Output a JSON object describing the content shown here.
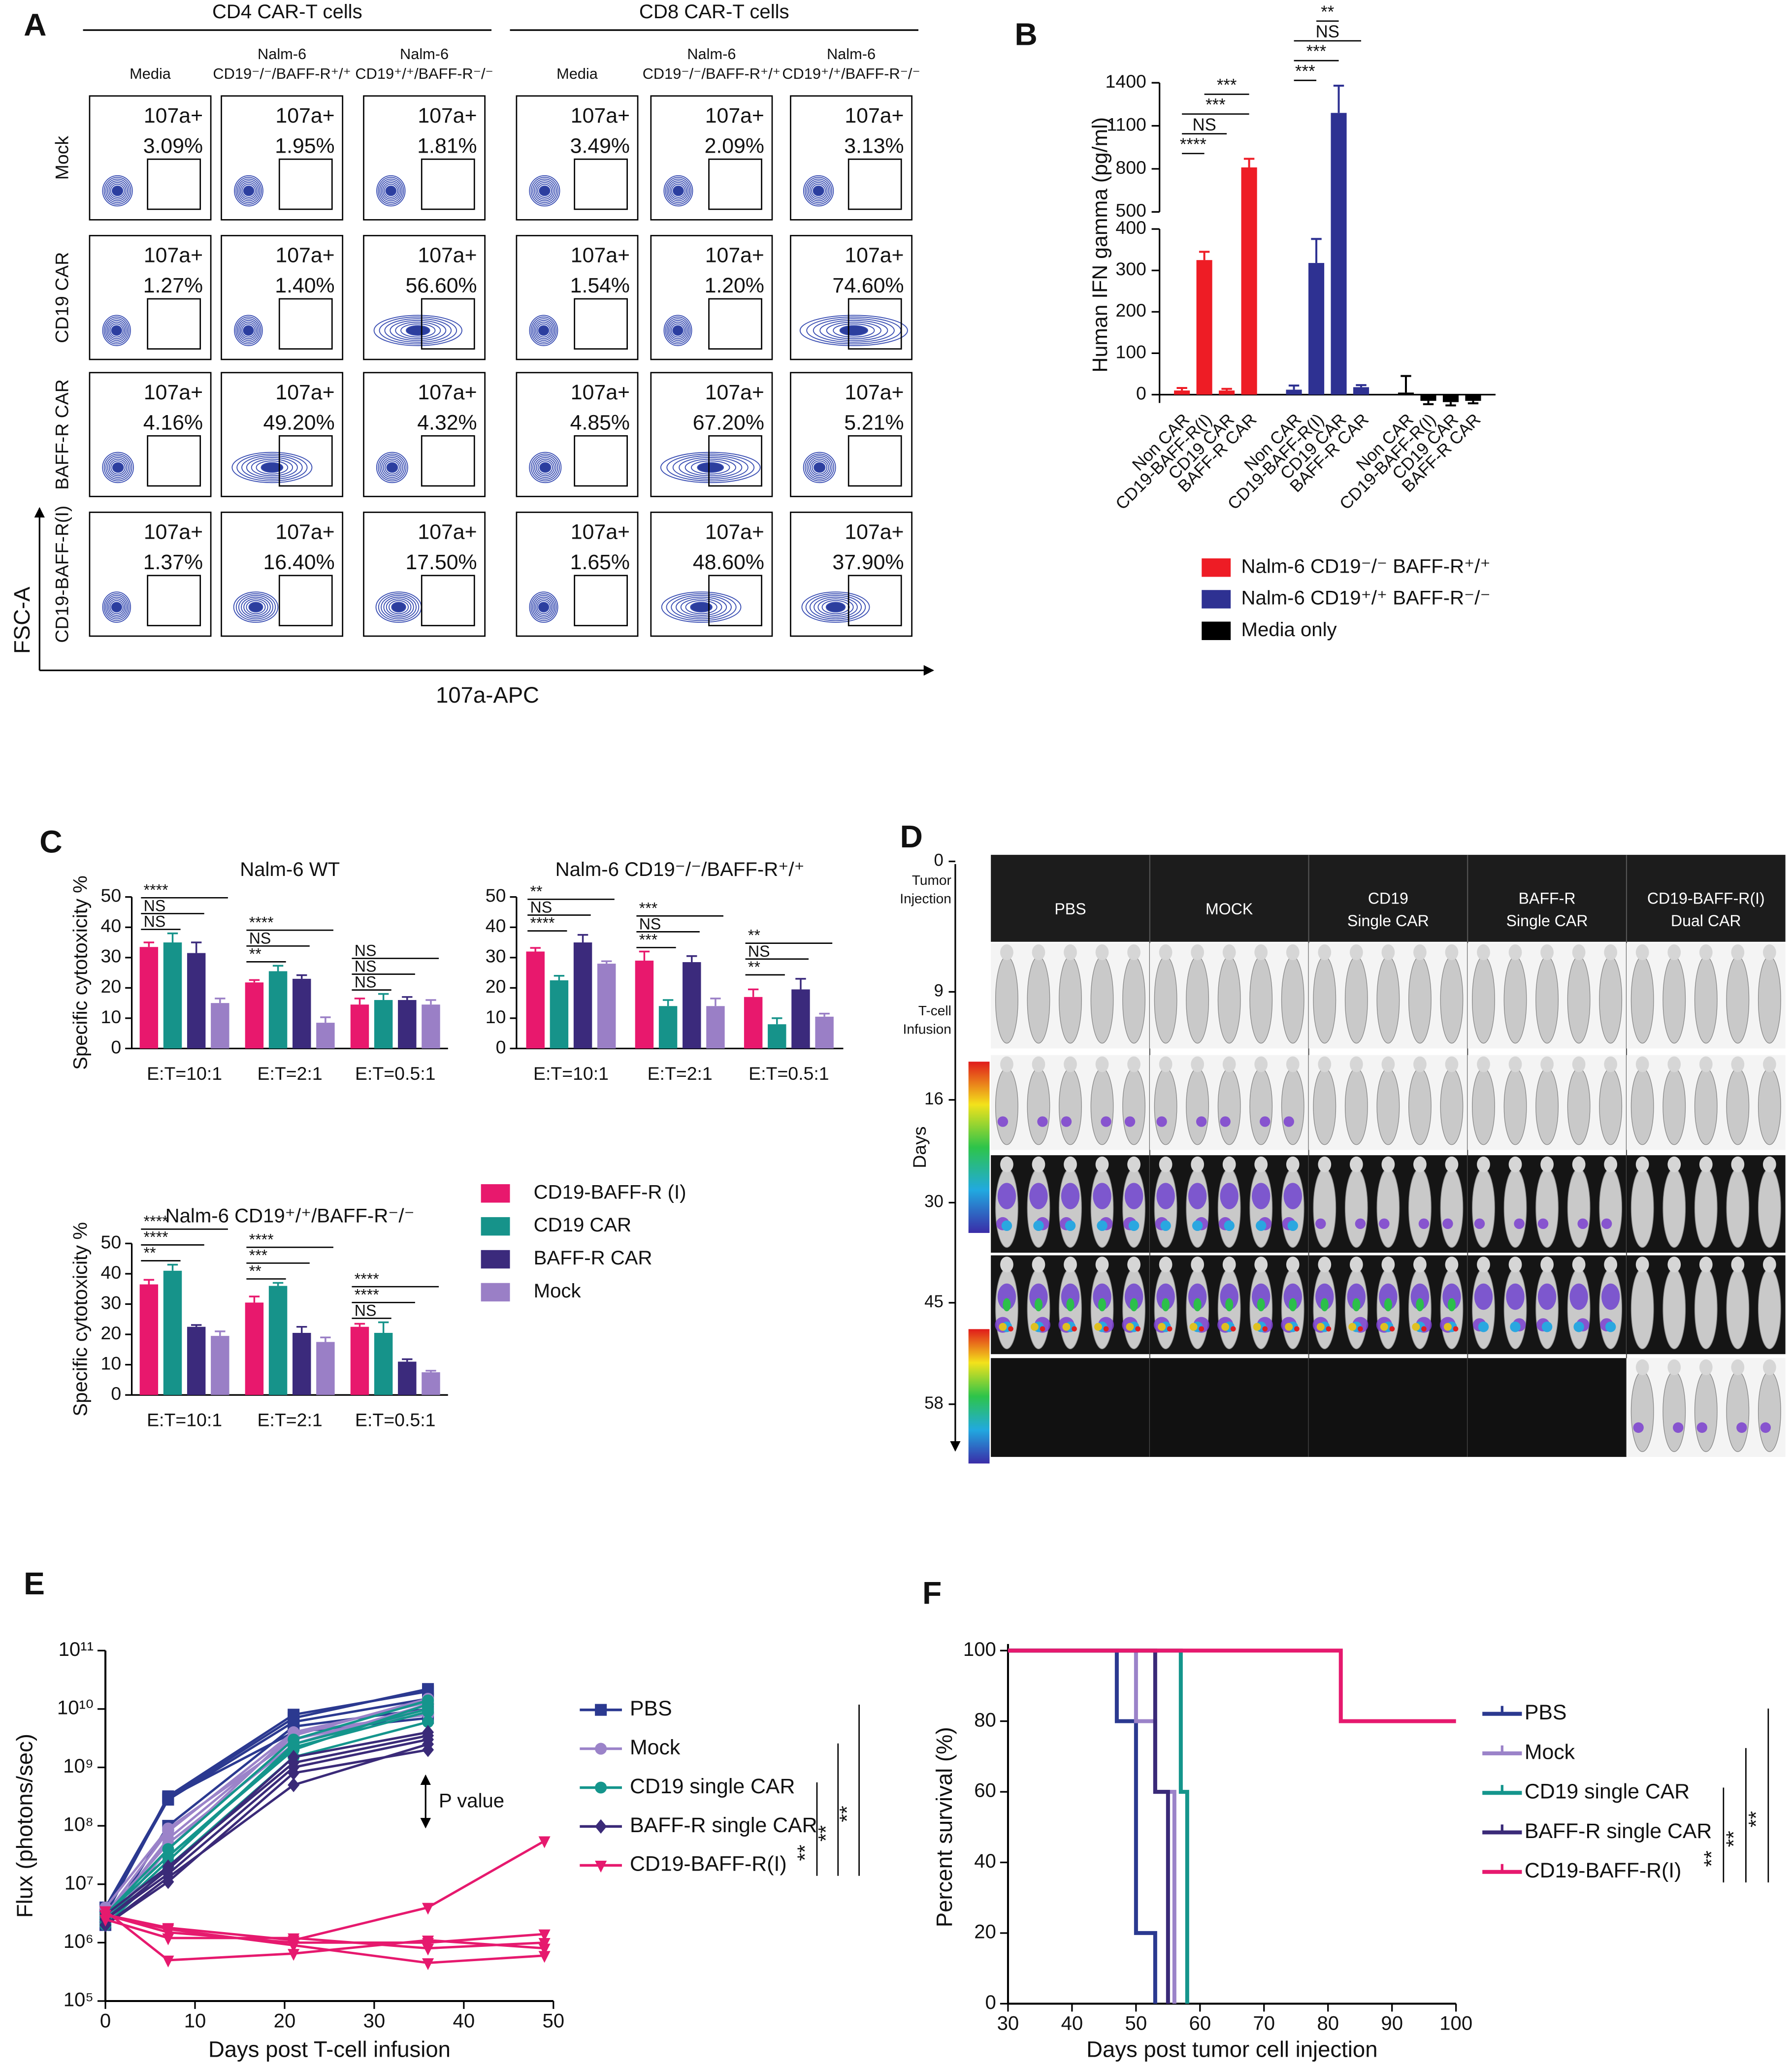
{
  "chart_data": [
    {
      "type": "contour",
      "label": "A",
      "groups": [
        "CD4 CAR-T cells",
        "CD8 CAR-T cells"
      ],
      "columns": [
        [
          "Media"
        ],
        [
          "Nalm-6",
          "CD19⁻/⁻/BAFF-R⁺/⁺"
        ],
        [
          "Nalm-6",
          "CD19⁺/⁺/BAFF-R⁻/⁻"
        ],
        [
          "Media"
        ],
        [
          "Nalm-6",
          "CD19⁻/⁻/BAFF-R⁺/⁺"
        ],
        [
          "Nalm-6",
          "CD19⁺/⁺/BAFF-R⁻/⁻"
        ]
      ],
      "rows": [
        "Mock",
        "CD19 CAR",
        "BAFF-R CAR",
        "CD19-BAFF-R(I)"
      ],
      "gate_label": "107a+",
      "values": [
        [
          3.09,
          1.95,
          1.81,
          3.49,
          2.09,
          3.13
        ],
        [
          1.27,
          1.4,
          56.6,
          1.54,
          1.2,
          74.6
        ],
        [
          4.16,
          49.2,
          4.32,
          4.85,
          67.2,
          5.21
        ],
        [
          1.37,
          16.4,
          17.5,
          1.65,
          48.6,
          37.9
        ]
      ],
      "value_labels": [
        [
          "3.09%",
          "1.95%",
          "1.81%",
          "3.49%",
          "2.09%",
          "3.13%"
        ],
        [
          "1.27%",
          "1.40%",
          "56.60%",
          "1.54%",
          "1.20%",
          "74.60%"
        ],
        [
          "4.16%",
          "49.20%",
          "4.32%",
          "4.85%",
          "67.20%",
          "5.21%"
        ],
        [
          "1.37%",
          "16.40%",
          "17.50%",
          "1.65%",
          "48.60%",
          "37.90%"
        ]
      ],
      "ylabel": "FSC-A",
      "xlabel": "107a-APC"
    },
    {
      "type": "bar",
      "label": "B",
      "ylabel": "Human IFN gamma (pg/ml)",
      "categories": [
        "Non CAR",
        "CD19-BAFF-R(I)",
        "CD19 CAR",
        "BAFF-R CAR"
      ],
      "ylim": [
        -20,
        1400
      ],
      "axis_break": [
        400,
        500
      ],
      "yticks": [
        0,
        100,
        200,
        300,
        400,
        500,
        800,
        1100,
        1400
      ],
      "series": [
        {
          "name": "Nalm-6 CD19⁻/⁻ BAFF-R⁺/⁺",
          "color": "#ee1c25",
          "values": [
            10,
            325,
            10,
            810
          ],
          "errors": [
            6,
            20,
            4,
            60
          ],
          "significance": [
            {
              "text": "****",
              "from": 0,
              "to": 1
            },
            {
              "text": "NS",
              "from": 0,
              "to": 2
            },
            {
              "text": "***",
              "from": 0,
              "to": 3
            },
            {
              "text": "***",
              "from": 1,
              "to": 3
            }
          ]
        },
        {
          "name": "Nalm-6 CD19⁺/⁺ BAFF-R⁻/⁻",
          "color": "#2e3192",
          "values": [
            12,
            318,
            1190,
            18
          ],
          "errors": [
            10,
            58,
            190,
            5
          ],
          "significance": [
            {
              "text": "***",
              "from": 0,
              "to": 1
            },
            {
              "text": "***",
              "from": 0,
              "to": 2
            },
            {
              "text": "NS",
              "from": 0,
              "to": 3
            },
            {
              "text": "**",
              "from": 1,
              "to": 2
            }
          ]
        },
        {
          "name": "Media only",
          "color": "#000000",
          "values": [
            5,
            -15,
            -18,
            -15
          ],
          "errors": [
            40,
            8,
            8,
            6
          ]
        }
      ]
    },
    {
      "type": "bar",
      "label": "C",
      "title": "Nalm-6 WT",
      "ylabel": "Specific cytotoxicity %",
      "categories": [
        "E:T=10:1",
        "E:T=2:1",
        "E:T=0.5:1"
      ],
      "ylim": [
        0,
        50
      ],
      "yticks": [
        0,
        10,
        20,
        30,
        40,
        50
      ],
      "series": [
        {
          "color": "#e8186d",
          "values": [
            33.5,
            21.8,
            14.5
          ],
          "errors": [
            1.5,
            0.8,
            2
          ]
        },
        {
          "color": "#16938a",
          "values": [
            35,
            25.5,
            16
          ],
          "errors": [
            3,
            1.8,
            2
          ]
        },
        {
          "color": "#3b2a7c",
          "values": [
            31.5,
            23,
            16
          ],
          "errors": [
            3.5,
            1.2,
            1
          ]
        },
        {
          "color": "#9a7fc6",
          "values": [
            15,
            8.5,
            14.5
          ],
          "errors": [
            1.5,
            1.8,
            1.5
          ]
        }
      ],
      "significance": [
        {
          "category": 0,
          "text": "NS",
          "from": 0,
          "to": 1
        },
        {
          "category": 0,
          "text": "NS",
          "from": 0,
          "to": 2
        },
        {
          "category": 0,
          "text": "****",
          "from": 0,
          "to": 3
        },
        {
          "category": 1,
          "text": "**",
          "from": 0,
          "to": 1
        },
        {
          "category": 1,
          "text": "NS",
          "from": 0,
          "to": 2
        },
        {
          "category": 1,
          "text": "****",
          "from": 0,
          "to": 3
        },
        {
          "category": 2,
          "text": "NS",
          "from": 0,
          "to": 1
        },
        {
          "category": 2,
          "text": "NS",
          "from": 0,
          "to": 2
        },
        {
          "category": 2,
          "text": "NS",
          "from": 0,
          "to": 3
        }
      ]
    },
    {
      "type": "bar",
      "title": "Nalm-6 CD19⁻/⁻/BAFF-R⁺/⁺",
      "categories": [
        "E:T=10:1",
        "E:T=2:1",
        "E:T=0.5:1"
      ],
      "ylim": [
        0,
        50
      ],
      "yticks": [
        0,
        10,
        20,
        30,
        40,
        50
      ],
      "series": [
        {
          "color": "#e8186d",
          "values": [
            32,
            29,
            17
          ],
          "errors": [
            1.2,
            3,
            2.5
          ]
        },
        {
          "color": "#16938a",
          "values": [
            22.5,
            14,
            8
          ],
          "errors": [
            1.5,
            2,
            2
          ]
        },
        {
          "color": "#3b2a7c",
          "values": [
            35,
            28.5,
            19.5
          ],
          "errors": [
            2.5,
            2,
            3.5
          ]
        },
        {
          "color": "#9a7fc6",
          "values": [
            28,
            14,
            10.5
          ],
          "errors": [
            0.8,
            2.5,
            1
          ]
        }
      ],
      "significance": [
        {
          "category": 0,
          "text": "****",
          "from": 0,
          "to": 1
        },
        {
          "category": 0,
          "text": "NS",
          "from": 0,
          "to": 2
        },
        {
          "category": 0,
          "text": "**",
          "from": 0,
          "to": 3
        },
        {
          "category": 1,
          "text": "***",
          "from": 0,
          "to": 1
        },
        {
          "category": 1,
          "text": "NS",
          "from": 0,
          "to": 2
        },
        {
          "category": 1,
          "text": "***",
          "from": 0,
          "to": 3
        },
        {
          "category": 2,
          "text": "**",
          "from": 0,
          "to": 1
        },
        {
          "category": 2,
          "text": "NS",
          "from": 0,
          "to": 2
        },
        {
          "category": 2,
          "text": "**",
          "from": 0,
          "to": 3
        }
      ]
    },
    {
      "type": "bar",
      "title": "Nalm-6 CD19⁺/⁺/BAFF-R⁻/⁻",
      "ylabel": "Specific cytotoxicity %",
      "categories": [
        "E:T=10:1",
        "E:T=2:1",
        "E:T=0.5:1"
      ],
      "ylim": [
        0,
        50
      ],
      "yticks": [
        0,
        10,
        20,
        30,
        40,
        50
      ],
      "legend": true,
      "series": [
        {
          "name": "CD19-BAFF-R (I)",
          "color": "#e8186d",
          "values": [
            36.5,
            30.5,
            22.5
          ],
          "errors": [
            1.5,
            2,
            1
          ]
        },
        {
          "name": "CD19 CAR",
          "color": "#16938a",
          "values": [
            41,
            36,
            20.5
          ],
          "errors": [
            2,
            1,
            3.5
          ]
        },
        {
          "name": "BAFF-R CAR",
          "color": "#3b2a7c",
          "values": [
            22.5,
            20.5,
            11
          ],
          "errors": [
            0.6,
            2,
            0.8
          ]
        },
        {
          "name": "Mock",
          "color": "#9a7fc6",
          "values": [
            19.5,
            17.5,
            7.5
          ],
          "errors": [
            1.5,
            1.5,
            0.5
          ]
        }
      ],
      "significance": [
        {
          "category": 0,
          "text": "**",
          "from": 0,
          "to": 1
        },
        {
          "category": 0,
          "text": "****",
          "from": 0,
          "to": 2
        },
        {
          "category": 0,
          "text": "****",
          "from": 0,
          "to": 3
        },
        {
          "category": 1,
          "text": "**",
          "from": 0,
          "to": 1
        },
        {
          "category": 1,
          "text": "***",
          "from": 0,
          "to": 2
        },
        {
          "category": 1,
          "text": "****",
          "from": 0,
          "to": 3
        },
        {
          "category": 2,
          "text": "NS",
          "from": 0,
          "to": 1
        },
        {
          "category": 2,
          "text": "****",
          "from": 0,
          "to": 2
        },
        {
          "category": 2,
          "text": "****",
          "from": 0,
          "to": 3
        }
      ]
    },
    {
      "type": "image",
      "label": "D",
      "ylabel": "Days",
      "days": [
        0,
        9,
        16,
        30,
        45,
        58
      ],
      "events": [
        {
          "day_index": 0,
          "text": [
            "Tumor",
            "Injection"
          ]
        },
        {
          "day_index": 1,
          "text": [
            "T-cell",
            "Infusion"
          ]
        }
      ],
      "groups": [
        [
          "PBS"
        ],
        [
          "MOCK"
        ],
        [
          "CD19",
          "Single CAR"
        ],
        [
          "BAFF-R",
          "Single CAR"
        ],
        [
          "CD19-BAFF-R(I)",
          "Dual CAR"
        ]
      ]
    },
    {
      "type": "line",
      "label": "E",
      "xlabel": "Days post T-cell infusion",
      "ylabel": "Flux (photons/sec)",
      "log_y": true,
      "x": [
        0,
        7,
        21,
        36,
        49
      ],
      "xlim": [
        0,
        50
      ],
      "xticks": [
        0,
        10,
        20,
        30,
        40,
        50
      ],
      "ylim": [
        100000,
        100000000000
      ],
      "yticks": [
        {
          "value": 100000,
          "label": "10⁵"
        },
        {
          "value": 1000000,
          "label": "10⁶"
        },
        {
          "value": 10000000,
          "label": "10⁷"
        },
        {
          "value": 100000000,
          "label": "10⁸"
        },
        {
          "value": 1000000000,
          "label": "10⁹"
        },
        {
          "value": 10000000000,
          "label": "10¹⁰"
        },
        {
          "value": 100000000000,
          "label": "10¹¹"
        }
      ],
      "series": [
        {
          "name": "PBS",
          "color": "#2b3990",
          "marker": "square",
          "lines": [
            [
              4000000,
              300000000,
              7000000000,
              22000000000,
              null
            ],
            [
              3000000,
              320000000,
              8000000000,
              20000000000,
              null
            ],
            [
              3500000,
              280000000,
              6000000000,
              15000000000,
              null
            ],
            [
              2000000,
              100000000,
              5000000000,
              10000000000,
              null
            ],
            [
              3000000,
              300000000,
              4000000000,
              7000000000,
              null
            ]
          ]
        },
        {
          "name": "Mock",
          "color": "#9b83c9",
          "marker": "circle",
          "lines": [
            [
              3000000,
              80000000,
              4000000000,
              13000000000,
              null
            ],
            [
              2500000,
              60000000,
              3500000000,
              15000000000,
              null
            ],
            [
              4000000,
              90000000,
              3000000000,
              10000000000,
              null
            ],
            [
              3000000,
              50000000,
              2500000000,
              12000000000,
              null
            ],
            [
              2000000,
              40000000,
              4000000000,
              8000000000,
              null
            ]
          ]
        },
        {
          "name": "CD19 single CAR",
          "color": "#14958c",
          "marker": "circle",
          "lines": [
            [
              3000000,
              30000000,
              2000000000,
              12000000000,
              null
            ],
            [
              2500000,
              25000000,
              2500000000,
              10000000000,
              null
            ],
            [
              3000000,
              40000000,
              3000000000,
              14000000000,
              null
            ],
            [
              2000000,
              20000000,
              1500000000,
              6000000000,
              null
            ],
            [
              3000000,
              30000000,
              2200000000,
              9000000000,
              null
            ]
          ]
        },
        {
          "name": "BAFF-R single CAR",
          "color": "#3a2a78",
          "marker": "diamond",
          "lines": [
            [
              2000000,
              11000000,
              800000000,
              2000000000,
              null
            ],
            [
              2500000,
              15000000,
              1000000000,
              3000000000,
              null
            ],
            [
              3000000,
              20000000,
              1200000000,
              3500000000,
              null
            ],
            [
              2000000,
              13000000,
              500000000,
              2500000000,
              null
            ],
            [
              2500000,
              18000000,
              1500000000,
              4000000000,
              null
            ]
          ]
        },
        {
          "name": "CD19-BAFF-R(I)",
          "color": "#e6196e",
          "marker": "triangle",
          "lines": [
            [
              3000000,
              1800000,
              1100000,
              4000000,
              55000000
            ],
            [
              3000000,
              1500000,
              1000000,
              1000000,
              1400000
            ],
            [
              2500000,
              1200000,
              1200000,
              800000,
              1000000
            ],
            [
              3500000,
              500000,
              650000,
              1100000,
              800000
            ],
            [
              3000000,
              1700000,
              900000,
              450000,
              600000
            ]
          ]
        }
      ],
      "annotation": "P value",
      "comparisons": [
        {
          "text": "**",
          "from": 2,
          "to": 4
        },
        {
          "text": "**",
          "from": 1,
          "to": 4
        },
        {
          "text": "**",
          "from": 0,
          "to": 4
        }
      ]
    },
    {
      "type": "survival",
      "label": "F",
      "xlabel": "Days post tumor cell injection",
      "ylabel": "Percent survival (%)",
      "xlim": [
        30,
        100
      ],
      "xticks": [
        30,
        40,
        50,
        60,
        70,
        80,
        90,
        100
      ],
      "ylim": [
        0,
        100
      ],
      "yticks": [
        0,
        20,
        40,
        60,
        80,
        100
      ],
      "series": [
        {
          "name": "PBS",
          "color": "#2b3990",
          "x": [
            30,
            47,
            50,
            53
          ],
          "values": [
            100,
            80,
            20,
            0
          ]
        },
        {
          "name": "Mock",
          "color": "#9b83c9",
          "x": [
            30,
            50,
            53,
            56
          ],
          "values": [
            100,
            80,
            60,
            0
          ]
        },
        {
          "name": "CD19 single CAR",
          "color": "#14958c",
          "x": [
            30,
            57,
            58
          ],
          "values": [
            100,
            60,
            0
          ]
        },
        {
          "name": "BAFF-R single CAR",
          "color": "#3a2a78",
          "x": [
            30,
            53,
            55
          ],
          "values": [
            100,
            60,
            0
          ]
        },
        {
          "name": "CD19-BAFF-R(I)",
          "color": "#e6196e",
          "x": [
            30,
            82,
            100
          ],
          "values": [
            100,
            80,
            80
          ]
        }
      ],
      "comparisons": [
        {
          "text": "**",
          "from": 2,
          "to": 4
        },
        {
          "text": "**",
          "from": 1,
          "to": 4
        },
        {
          "text": "**",
          "from": 0,
          "to": 4
        }
      ]
    }
  ]
}
